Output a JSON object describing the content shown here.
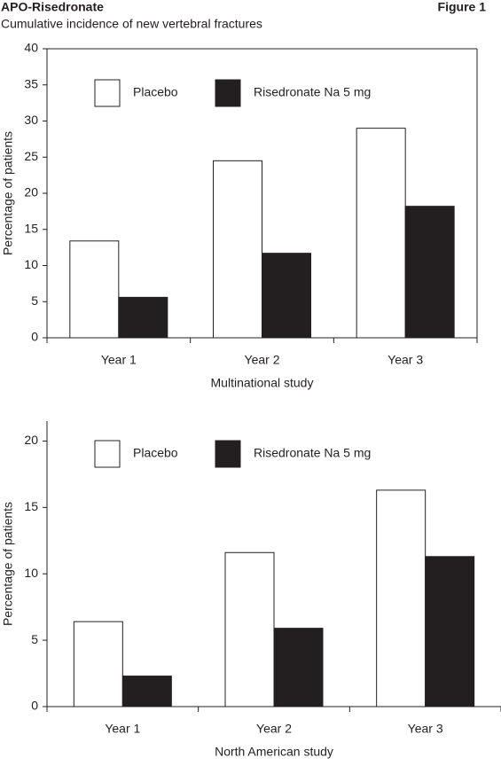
{
  "header": {
    "title": "APO-Risedronate",
    "figure": "Figure 1",
    "subtitle": "Cumulative incidence of new vertebral fractures"
  },
  "chart_data": [
    {
      "type": "bar",
      "x_label": "Multinational study",
      "y_label": "Percentage of patients",
      "categories": [
        "Year 1",
        "Year 2",
        "Year 3"
      ],
      "series": [
        {
          "name": "Placebo",
          "color": "#ffffff",
          "values": [
            13.4,
            24.5,
            29.0
          ]
        },
        {
          "name": "Risedronate Na 5 mg",
          "color": "#231f20",
          "values": [
            5.6,
            11.7,
            18.2
          ]
        }
      ],
      "ylim": [
        0,
        40
      ],
      "yticks": [
        0,
        5,
        10,
        15,
        20,
        25,
        30,
        35,
        40
      ],
      "grid": false
    },
    {
      "type": "bar",
      "x_label": "North American study",
      "y_label": "Percentage of patients",
      "categories": [
        "Year 1",
        "Year 2",
        "Year 3"
      ],
      "series": [
        {
          "name": "Placebo",
          "color": "#ffffff",
          "values": [
            6.4,
            11.6,
            16.3
          ]
        },
        {
          "name": "Risedronate Na 5 mg",
          "color": "#231f20",
          "values": [
            2.3,
            5.9,
            11.3
          ]
        }
      ],
      "ylim": [
        0,
        21.5
      ],
      "yticks": [
        0,
        5,
        10,
        15,
        20
      ],
      "grid": false
    }
  ]
}
